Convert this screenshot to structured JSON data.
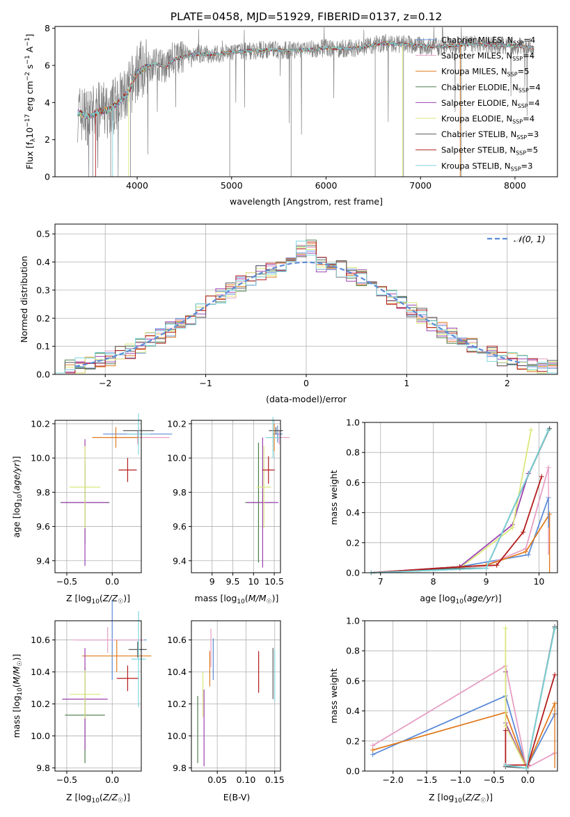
{
  "figure": {
    "title": "PLATE=0458, MJD=51929, FIBERID=0137, z=0.12"
  },
  "colors": {
    "data": "#808080",
    "normal": "#5b8bd6",
    "models": [
      "#5b8bd6",
      "#e69fc4",
      "#e07b1f",
      "#4a7f4a",
      "#9b40b0",
      "#dbe77a",
      "#5a5a5a",
      "#b31c1c",
      "#7ed6de"
    ]
  },
  "chart_data": [
    {
      "id": "spectrum",
      "type": "line",
      "xlabel": "wavelength [Angstrom, rest frame]",
      "ylabel": "Flux [f_λ 10^-17 erg cm^-2 s^-1 A^-1]",
      "xlim": [
        3130,
        8450
      ],
      "ylim": [
        0,
        8.1
      ],
      "xticks": [
        4000,
        5000,
        6000,
        7000,
        8000
      ],
      "yticks": [
        0,
        2,
        4,
        6,
        8
      ],
      "grid": false,
      "legend_position": "upper-right",
      "legend": [
        "Chabrier MILES, N_SSP=4",
        "Salpeter MILES, N_SSP=4",
        "Kroupa MILES, N_SSP=5",
        "Chabrier ELODIE, N_SSP=4",
        "Salpeter ELODIE, N_SSP=4",
        "Kroupa ELODIE, N_SSP=4",
        "Chabrier STELIB, N_SSP=3",
        "Salpeter STELIB, N_SSP=5",
        "Kroupa STELIB, N_SSP=3"
      ],
      "continuum": {
        "x": [
          3370,
          3500,
          3600,
          3700,
          3800,
          3900,
          4000,
          4100,
          4200,
          4300,
          4400,
          4600,
          4800,
          5000,
          5200,
          5400,
          5600,
          5800,
          6000,
          6200,
          6400,
          6600,
          6800,
          7000,
          7200,
          7400,
          7600,
          7800,
          8000,
          8200
        ],
        "y": [
          3.45,
          3.25,
          3.55,
          3.6,
          4.0,
          4.5,
          5.6,
          5.95,
          6.1,
          5.9,
          6.35,
          6.6,
          6.6,
          6.7,
          6.8,
          6.85,
          6.8,
          6.85,
          6.95,
          6.9,
          7.0,
          7.2,
          7.15,
          7.05,
          7.0,
          7.1,
          7.15,
          7.1,
          7.05,
          6.95
        ]
      }
    },
    {
      "id": "residuals",
      "type": "line",
      "xlabel": "(data-model)/error",
      "ylabel": "Normed distribution",
      "xlim": [
        -2.5,
        2.5
      ],
      "ylim": [
        0,
        0.535
      ],
      "xticks": [
        -2,
        -1,
        0,
        1,
        2
      ],
      "yticks": [
        0.0,
        0.1,
        0.2,
        0.3,
        0.4,
        0.5
      ],
      "grid": true,
      "legend": [
        "𝒩(0, 1)"
      ],
      "legend_position": "upper-right"
    },
    {
      "id": "age-vs-Z",
      "type": "scatter",
      "xlabel": "Z [log10(Z/Z☉)]",
      "ylabel": "age [log10(age/yr)]",
      "xlim": [
        -0.63,
        0.32
      ],
      "ylim": [
        9.33,
        10.22
      ],
      "xticks": [
        -0.5,
        0.0
      ],
      "yticks": [
        9.4,
        9.6,
        9.8,
        10.0,
        10.2
      ],
      "grid": true,
      "points": [
        {
          "c": 0,
          "x": 0.28,
          "y": 10.14,
          "xe": 0.38,
          "ye": 0.02
        },
        {
          "c": 1,
          "x": 0.28,
          "y": 10.12,
          "xe": 0.35,
          "ye": 0.04
        },
        {
          "c": 2,
          "x": 0.04,
          "y": 10.12,
          "xe": 0.26,
          "ye": 0.06
        },
        {
          "c": 3,
          "x": -0.3,
          "y": 9.74,
          "xe": 0.27,
          "ye": 0.24
        },
        {
          "c": 4,
          "x": -0.3,
          "y": 9.74,
          "xe": 0.26,
          "ye": 0.37
        },
        {
          "c": 5,
          "x": -0.3,
          "y": 9.83,
          "xe": 0.17,
          "ye": 0.24
        },
        {
          "c": 6,
          "x": 0.29,
          "y": 10.16,
          "xe": 0.17,
          "ye": 0.02
        },
        {
          "c": 7,
          "x": 0.17,
          "y": 9.93,
          "xe": 0.1,
          "ye": 0.07
        },
        {
          "c": 8,
          "x": 0.29,
          "y": 10.14,
          "xe": 0.13,
          "ye": 0.12
        }
      ]
    },
    {
      "id": "age-vs-mass",
      "type": "scatter",
      "xlabel": "mass [log10(M/M☉)]",
      "ylabel": "",
      "xlim": [
        8.5,
        10.65
      ],
      "ylim": [
        9.33,
        10.22
      ],
      "xticks": [
        9.0,
        9.5,
        10.0,
        10.5
      ],
      "yticks": [
        9.4,
        9.6,
        9.8,
        10.0,
        10.2
      ],
      "grid": true,
      "points": [
        {
          "c": 0,
          "x": 10.58,
          "y": 10.14,
          "xe": 0.12,
          "ye": 0.05
        },
        {
          "c": 1,
          "x": 10.62,
          "y": 10.12,
          "xe": 0.25,
          "ye": 0.04
        },
        {
          "c": 2,
          "x": 10.5,
          "y": 10.12,
          "xe": 0.12,
          "ye": 0.08
        },
        {
          "c": 3,
          "x": 10.12,
          "y": 9.74,
          "xe": 0.32,
          "ye": 0.35
        },
        {
          "c": 4,
          "x": 10.22,
          "y": 9.74,
          "xe": 0.38,
          "ye": 0.38
        },
        {
          "c": 5,
          "x": 10.25,
          "y": 9.83,
          "xe": 0.17,
          "ye": 0.24
        },
        {
          "c": 6,
          "x": 10.54,
          "y": 10.16,
          "xe": 0.17,
          "ye": 0.02
        },
        {
          "c": 7,
          "x": 10.36,
          "y": 9.93,
          "xe": 0.15,
          "ye": 0.08
        },
        {
          "c": 8,
          "x": 10.47,
          "y": 10.12,
          "xe": 0.18,
          "ye": 0.12
        }
      ]
    },
    {
      "id": "massweight-vs-age",
      "type": "line",
      "xlabel": "age [log10(age/yr)]",
      "ylabel": "mass weight",
      "xlim": [
        6.7,
        10.35
      ],
      "ylim": [
        0,
        1.0
      ],
      "xticks": [
        7,
        8,
        9,
        10
      ],
      "yticks": [
        0.0,
        0.2,
        0.4,
        0.6,
        0.8,
        1.0
      ],
      "grid": true,
      "series": [
        {
          "c": 0,
          "x": [
            6.82,
            8.5,
            9.8,
            10.18
          ],
          "y": [
            0.0,
            0.04,
            0.12,
            0.5
          ]
        },
        {
          "c": 1,
          "x": [
            6.82,
            9.0,
            9.75,
            10.18
          ],
          "y": [
            0.0,
            0.05,
            0.16,
            0.7
          ]
        },
        {
          "c": 2,
          "x": [
            6.82,
            9.0,
            9.75,
            10.2
          ],
          "y": [
            0.0,
            0.05,
            0.14,
            0.39
          ]
        },
        {
          "c": 3,
          "x": [
            6.82,
            9.0,
            10.18
          ],
          "y": [
            0.0,
            0.03,
            0.95
          ]
        },
        {
          "c": 4,
          "x": [
            6.82,
            8.5,
            9.5,
            9.8
          ],
          "y": [
            0.0,
            0.04,
            0.32,
            0.66
          ]
        },
        {
          "c": 5,
          "x": [
            6.82,
            8.5,
            9.5,
            9.85
          ],
          "y": [
            0.0,
            0.03,
            0.3,
            0.95
          ]
        },
        {
          "c": 6,
          "x": [
            6.82,
            8.5,
            9.0,
            10.2
          ],
          "y": [
            0.0,
            0.03,
            0.03,
            0.96
          ]
        },
        {
          "c": 7,
          "x": [
            6.82,
            8.5,
            9.2,
            9.7,
            10.05
          ],
          "y": [
            0.0,
            0.04,
            0.05,
            0.27,
            0.64
          ]
        },
        {
          "c": 8,
          "x": [
            6.82,
            9.0,
            10.18
          ],
          "y": [
            0.0,
            0.03,
            0.95
          ]
        }
      ],
      "errbars": [
        {
          "c": 1,
          "x": 10.18,
          "lo": 0.12,
          "hi": 0.7
        },
        {
          "c": 2,
          "x": 10.2,
          "lo": 0.0,
          "hi": 0.39
        },
        {
          "c": 0,
          "x": 10.18,
          "lo": 0.3,
          "hi": 0.5
        }
      ]
    },
    {
      "id": "mass-vs-Z",
      "type": "scatter",
      "xlabel": "Z [log10(Z/Z☉)]",
      "ylabel": "mass [log10(M/M☉)]",
      "xlim": [
        -0.63,
        0.32
      ],
      "ylim": [
        9.78,
        10.72
      ],
      "xticks": [
        -0.5,
        0.0
      ],
      "yticks": [
        9.8,
        10.0,
        10.2,
        10.4,
        10.6
      ],
      "grid": true,
      "points": [
        {
          "c": 0,
          "x": 0.0,
          "y": 10.6,
          "xe": 0.38,
          "ye": 0.25
        },
        {
          "c": 1,
          "x": -0.05,
          "y": 10.6,
          "xe": 0.4,
          "ye": 0.08
        },
        {
          "c": 2,
          "x": 0.05,
          "y": 10.5,
          "xe": 0.38,
          "ye": 0.1
        },
        {
          "c": 3,
          "x": -0.3,
          "y": 10.13,
          "xe": 0.22,
          "ye": 0.3
        },
        {
          "c": 4,
          "x": -0.3,
          "y": 10.23,
          "xe": 0.25,
          "ye": 0.32
        },
        {
          "c": 5,
          "x": -0.3,
          "y": 10.26,
          "xe": 0.17,
          "ye": 0.15
        },
        {
          "c": 6,
          "x": 0.28,
          "y": 10.54,
          "xe": 0.1,
          "ye": 0.05
        },
        {
          "c": 7,
          "x": 0.17,
          "y": 10.36,
          "xe": 0.12,
          "ye": 0.08
        },
        {
          "c": 8,
          "x": 0.29,
          "y": 10.48,
          "xe": 0.08,
          "ye": 0.3
        }
      ]
    },
    {
      "id": "mass-vs-ebv",
      "type": "scatter",
      "xlabel": "E(B-V)",
      "ylabel": "",
      "xlim": [
        0.005,
        0.16
      ],
      "ylim": [
        9.78,
        10.72
      ],
      "xticks": [
        0.05,
        0.1,
        0.15
      ],
      "yticks": [
        9.8,
        10.0,
        10.2,
        10.4,
        10.6
      ],
      "grid": true,
      "points": [
        {
          "c": 0,
          "x": 0.043,
          "y": 10.48,
          "xe": 0,
          "ye": 0.13
        },
        {
          "c": 1,
          "x": 0.039,
          "y": 10.55,
          "xe": 0,
          "ye": 0.12
        },
        {
          "c": 2,
          "x": 0.037,
          "y": 10.42,
          "xe": 0,
          "ye": 0.11
        },
        {
          "c": 3,
          "x": 0.016,
          "y": 10.04,
          "xe": 0,
          "ye": 0.21
        },
        {
          "c": 4,
          "x": 0.027,
          "y": 10.05,
          "xe": 0,
          "ye": 0.24
        },
        {
          "c": 5,
          "x": 0.025,
          "y": 10.26,
          "xe": 0,
          "ye": 0.14
        },
        {
          "c": 6,
          "x": 0.147,
          "y": 10.39,
          "xe": 0,
          "ye": 0.16
        },
        {
          "c": 7,
          "x": 0.122,
          "y": 10.4,
          "xe": 0,
          "ye": 0.13
        },
        {
          "c": 8,
          "x": 0.15,
          "y": 10.38,
          "xe": 0,
          "ye": 0.16
        }
      ]
    },
    {
      "id": "massweight-vs-Z",
      "type": "line",
      "xlabel": "Z [log10(Z/Z☉)]",
      "ylabel": "mass weight",
      "xlim": [
        -2.42,
        0.44
      ],
      "ylim": [
        0,
        1.0
      ],
      "xticks": [
        -2.0,
        -1.5,
        -1.0,
        -0.5,
        0.0
      ],
      "yticks": [
        0.0,
        0.2,
        0.4,
        0.6,
        0.8,
        1.0
      ],
      "grid": true,
      "series": [
        {
          "c": 0,
          "x": [
            -2.3,
            -0.33,
            -0.02,
            0.4
          ],
          "y": [
            0.11,
            0.5,
            0.02,
            0.38
          ]
        },
        {
          "c": 1,
          "x": [
            -2.3,
            -0.33,
            -0.02,
            0.4
          ],
          "y": [
            0.17,
            0.7,
            0.02,
            0.12
          ]
        },
        {
          "c": 2,
          "x": [
            -2.3,
            -0.33,
            -0.02,
            0.4
          ],
          "y": [
            0.14,
            0.39,
            0.02,
            0.45
          ]
        },
        {
          "c": 3,
          "x": [
            -0.33,
            -0.02,
            0.4
          ],
          "y": [
            0.03,
            0.02,
            0.95
          ]
        },
        {
          "c": 4,
          "x": [
            -0.33,
            -0.33,
            -0.02
          ],
          "y": [
            0.66,
            0.32,
            0.02
          ]
        },
        {
          "c": 5,
          "x": [
            -0.33,
            -0.33,
            -0.02
          ],
          "y": [
            0.95,
            0.3,
            0.02
          ]
        },
        {
          "c": 6,
          "x": [
            -0.33,
            -0.02,
            0.4
          ],
          "y": [
            0.03,
            0.02,
            0.96
          ]
        },
        {
          "c": 7,
          "x": [
            -0.33,
            -0.33,
            0.0,
            0.4
          ],
          "y": [
            0.27,
            0.04,
            0.04,
            0.64
          ]
        },
        {
          "c": 8,
          "x": [
            -0.33,
            -0.02,
            0.4
          ],
          "y": [
            0.04,
            0.02,
            0.95
          ]
        }
      ],
      "errbars": [
        {
          "c": 2,
          "x": 0.4,
          "lo": 0.02,
          "hi": 0.45
        }
      ]
    }
  ]
}
